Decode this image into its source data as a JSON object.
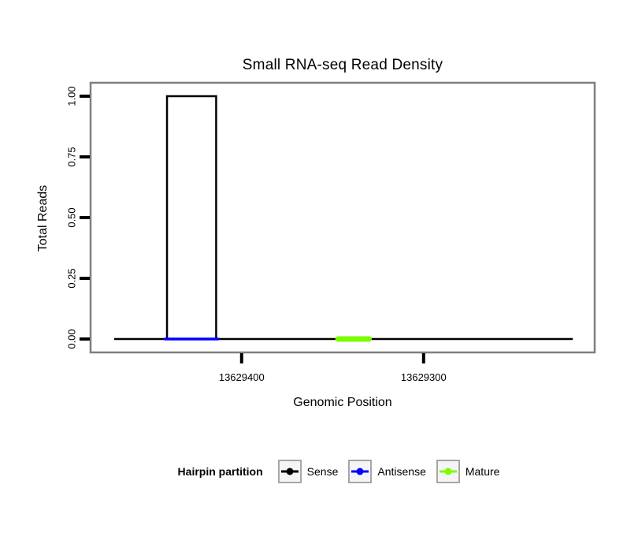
{
  "chart_data": {
    "type": "line",
    "title": "Small RNA-seq Read Density",
    "xlabel": "Genomic Position",
    "ylabel": "Total Reads",
    "grid": false,
    "x_reversed": true,
    "xlim": [
      13629483,
      13629206
    ],
    "ylim": [
      0,
      1
    ],
    "x_ticks": [
      {
        "value": 13629400,
        "label": "13629400"
      },
      {
        "value": 13629300,
        "label": "13629300"
      }
    ],
    "y_ticks": [
      {
        "value": 0.0,
        "label": "0.00"
      },
      {
        "value": 0.25,
        "label": "0.25"
      },
      {
        "value": 0.5,
        "label": "0.50"
      },
      {
        "value": 0.75,
        "label": "0.75"
      },
      {
        "value": 1.0,
        "label": "1.00"
      }
    ],
    "series": [
      {
        "name": "Sense",
        "type": "step",
        "color": "#000000",
        "linewidth": 2.5,
        "x": [
          13629470,
          13629441,
          13629441,
          13629414,
          13629414,
          13629218
        ],
        "y": [
          0,
          0,
          1,
          1,
          0,
          0
        ]
      },
      {
        "name": "Antisense",
        "type": "line",
        "color": "#0000ff",
        "linewidth": 3.5,
        "x": [
          13629442,
          13629413
        ],
        "y": [
          0,
          0
        ]
      },
      {
        "name": "Mature",
        "type": "line",
        "color": "#7cfc00",
        "linewidth": 7,
        "x": [
          13629347,
          13629330
        ],
        "y": [
          0,
          0
        ]
      }
    ],
    "legend": {
      "position": "bottom",
      "title": "Hairpin partition",
      "entries": [
        {
          "label": "Sense",
          "color": "#000000"
        },
        {
          "label": "Antisense",
          "color": "#0000ff"
        },
        {
          "label": "Mature",
          "color": "#7cfc00"
        }
      ]
    },
    "colors": {
      "background": "#ffffff",
      "panel_fill": "#ffffff",
      "panel_border": "#7f7f7f",
      "tick": "#000000",
      "text": "#000000",
      "legend_key_border": "#a6a6a6",
      "legend_key_fill": "#f5f5f5"
    }
  }
}
